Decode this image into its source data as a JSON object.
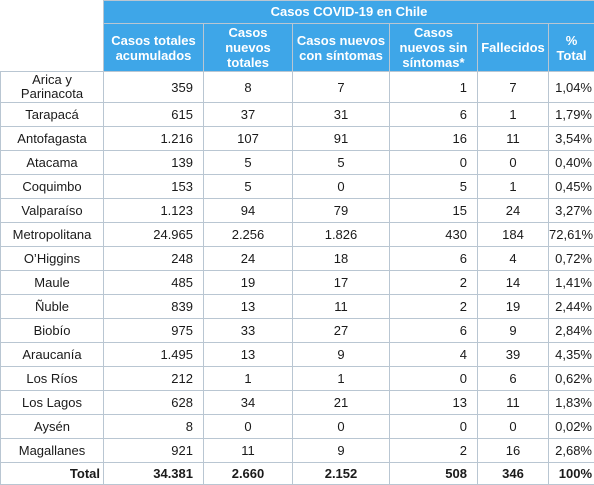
{
  "table": {
    "title": "Casos COVID-19 en Chile",
    "headers": [
      "Casos totales acumulados",
      "Casos nuevos totales",
      "Casos nuevos con síntomas",
      "Casos nuevos sin síntomas*",
      "Fallecidos",
      "% Total"
    ],
    "rows": [
      {
        "region": "Arica y Parinacota",
        "acumulados": "359",
        "nuevos": "8",
        "con_sintomas": "7",
        "sin_sintomas": "1",
        "fallecidos": "7",
        "pct": "1,04%"
      },
      {
        "region": "Tarapacá",
        "acumulados": "615",
        "nuevos": "37",
        "con_sintomas": "31",
        "sin_sintomas": "6",
        "fallecidos": "1",
        "pct": "1,79%"
      },
      {
        "region": "Antofagasta",
        "acumulados": "1.216",
        "nuevos": "107",
        "con_sintomas": "91",
        "sin_sintomas": "16",
        "fallecidos": "11",
        "pct": "3,54%"
      },
      {
        "region": "Atacama",
        "acumulados": "139",
        "nuevos": "5",
        "con_sintomas": "5",
        "sin_sintomas": "0",
        "fallecidos": "0",
        "pct": "0,40%"
      },
      {
        "region": "Coquimbo",
        "acumulados": "153",
        "nuevos": "5",
        "con_sintomas": "0",
        "sin_sintomas": "5",
        "fallecidos": "1",
        "pct": "0,45%"
      },
      {
        "region": "Valparaíso",
        "acumulados": "1.123",
        "nuevos": "94",
        "con_sintomas": "79",
        "sin_sintomas": "15",
        "fallecidos": "24",
        "pct": "3,27%"
      },
      {
        "region": "Metropolitana",
        "acumulados": "24.965",
        "nuevos": "2.256",
        "con_sintomas": "1.826",
        "sin_sintomas": "430",
        "fallecidos": "184",
        "pct": "72,61%"
      },
      {
        "region": "O’Higgins",
        "acumulados": "248",
        "nuevos": "24",
        "con_sintomas": "18",
        "sin_sintomas": "6",
        "fallecidos": "4",
        "pct": "0,72%"
      },
      {
        "region": "Maule",
        "acumulados": "485",
        "nuevos": "19",
        "con_sintomas": "17",
        "sin_sintomas": "2",
        "fallecidos": "14",
        "pct": "1,41%"
      },
      {
        "region": "Ñuble",
        "acumulados": "839",
        "nuevos": "13",
        "con_sintomas": "11",
        "sin_sintomas": "2",
        "fallecidos": "19",
        "pct": "2,44%"
      },
      {
        "region": "Biobío",
        "acumulados": "975",
        "nuevos": "33",
        "con_sintomas": "27",
        "sin_sintomas": "6",
        "fallecidos": "9",
        "pct": "2,84%"
      },
      {
        "region": "Araucanía",
        "acumulados": "1.495",
        "nuevos": "13",
        "con_sintomas": "9",
        "sin_sintomas": "4",
        "fallecidos": "39",
        "pct": "4,35%"
      },
      {
        "region": "Los Ríos",
        "acumulados": "212",
        "nuevos": "1",
        "con_sintomas": "1",
        "sin_sintomas": "0",
        "fallecidos": "6",
        "pct": "0,62%"
      },
      {
        "region": "Los Lagos",
        "acumulados": "628",
        "nuevos": "34",
        "con_sintomas": "21",
        "sin_sintomas": "13",
        "fallecidos": "11",
        "pct": "1,83%"
      },
      {
        "region": "Aysén",
        "acumulados": "8",
        "nuevos": "0",
        "con_sintomas": "0",
        "sin_sintomas": "0",
        "fallecidos": "0",
        "pct": "0,02%"
      },
      {
        "region": "Magallanes",
        "acumulados": "921",
        "nuevos": "11",
        "con_sintomas": "9",
        "sin_sintomas": "2",
        "fallecidos": "16",
        "pct": "2,68%"
      }
    ],
    "total": {
      "label": "Total",
      "acumulados": "34.381",
      "nuevos": "2.660",
      "con_sintomas": "2.152",
      "sin_sintomas": "508",
      "fallecidos": "346",
      "pct": "100%"
    }
  },
  "colors": {
    "header_bg": "#3ea6e8",
    "header_text": "#ffffff",
    "border": "#b9c6d2"
  }
}
